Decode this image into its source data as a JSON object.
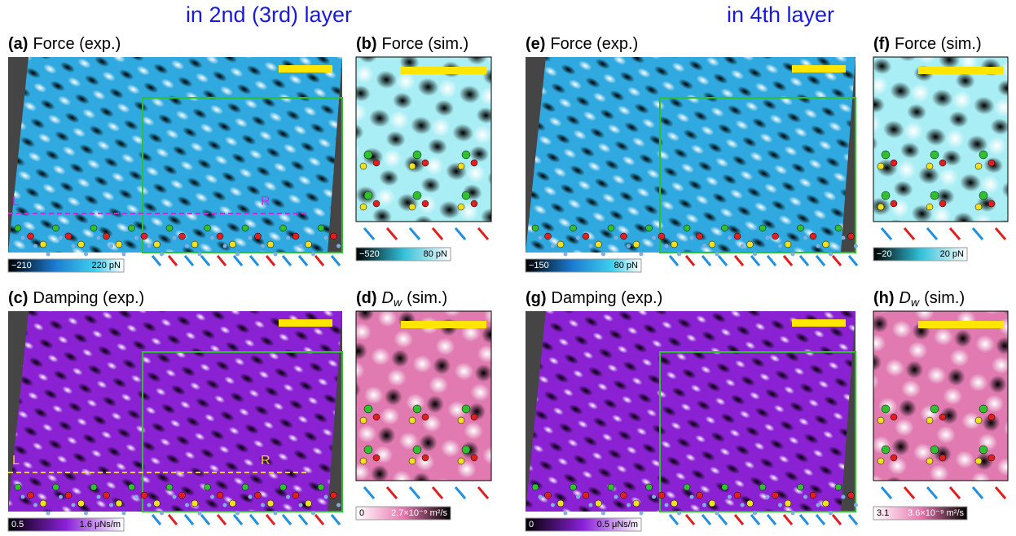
{
  "headers": [
    "in 2nd (3rd) layer",
    "in 4th layer"
  ],
  "panels": [
    {
      "label": "(a)",
      "title": "Force (exp.)",
      "colorbar": [
        "−210",
        "220 pN"
      ],
      "markers": [
        "L",
        "R"
      ]
    },
    {
      "label": "(b)",
      "title": "Force (sim.)",
      "colorbar": [
        "−520",
        "80 pN"
      ]
    },
    {
      "label": "(c)",
      "title": "Damping (exp.)",
      "colorbar": [
        "0.5",
        "1.6 μNs/m"
      ],
      "markers": [
        "L",
        "R"
      ]
    },
    {
      "label": "(d)",
      "title": "D",
      "title_sub": "w",
      "title_rest": "(sim.)",
      "colorbar": [
        "0",
        "2.7×10⁻⁹ m²/s"
      ]
    },
    {
      "label": "(e)",
      "title": "Force (exp.)",
      "colorbar": [
        "−150",
        "80 pN"
      ]
    },
    {
      "label": "(f)",
      "title": "Force (sim.)",
      "colorbar": [
        "−20",
        "20 pN"
      ]
    },
    {
      "label": "(g)",
      "title": "Damping (exp.)",
      "colorbar": [
        "0",
        "0.5 μNs/m"
      ]
    },
    {
      "label": "(h)",
      "title": "D",
      "title_sub": "w",
      "title_rest": "(sim.)",
      "colorbar": [
        "3.1",
        "3.6×10⁻⁹ m²/s"
      ]
    }
  ]
}
